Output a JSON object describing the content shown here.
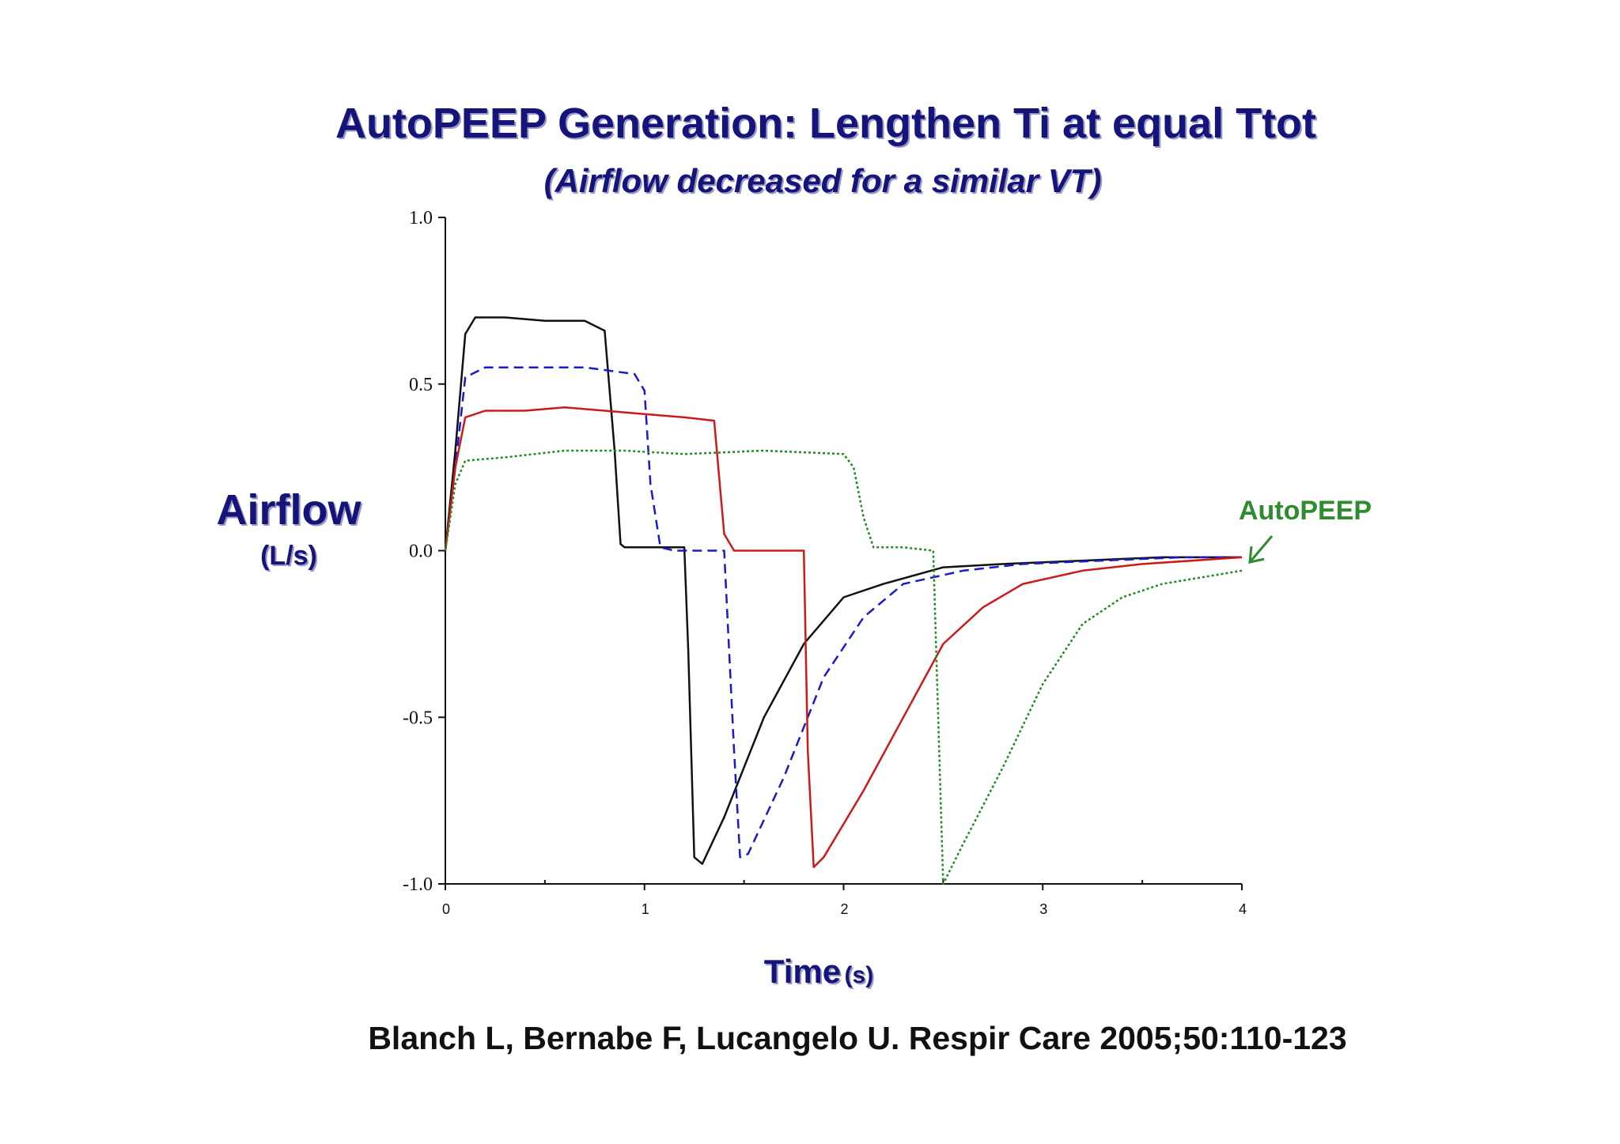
{
  "title": "AutoPEEP Generation: Lengthen Ti at equal Ttot",
  "subtitle": "(Airflow decreased for a similar VT)",
  "y_axis": {
    "label": "Airflow",
    "unit": "(L/s)"
  },
  "x_axis": {
    "label": "Time",
    "unit": "(s)"
  },
  "citation": "Blanch L, Bernabe F, Lucangelo U. Respir Care 2005;50:110-123",
  "annotation": {
    "text": "AutoPEEP",
    "color": "#2e8b2e"
  },
  "chart_data": {
    "type": "line",
    "title": "AutoPEEP Generation: Lengthen Ti at equal Ttot",
    "subtitle": "(Airflow decreased for a similar VT)",
    "xlabel": "Time (s)",
    "ylabel": "Airflow (L/s)",
    "xlim": [
      0,
      4
    ],
    "ylim": [
      -1.0,
      1.0
    ],
    "x_ticks": [
      "0",
      "1",
      "2",
      "3",
      "4"
    ],
    "y_ticks": [
      "1.0",
      "0.5",
      "0.0",
      "-0.5",
      "-1.0"
    ],
    "grid": false,
    "series": [
      {
        "color": "#111111",
        "dash": "solid",
        "points": [
          [
            0,
            0.0
          ],
          [
            0.05,
            0.3
          ],
          [
            0.1,
            0.65
          ],
          [
            0.15,
            0.7
          ],
          [
            0.3,
            0.7
          ],
          [
            0.5,
            0.69
          ],
          [
            0.7,
            0.69
          ],
          [
            0.8,
            0.66
          ],
          [
            0.85,
            0.3
          ],
          [
            0.88,
            0.02
          ],
          [
            0.9,
            0.01
          ],
          [
            1.0,
            0.01
          ],
          [
            1.1,
            0.01
          ],
          [
            1.2,
            0.01
          ],
          [
            1.22,
            -0.3
          ],
          [
            1.25,
            -0.92
          ],
          [
            1.29,
            -0.94
          ],
          [
            1.4,
            -0.8
          ],
          [
            1.6,
            -0.5
          ],
          [
            1.8,
            -0.28
          ],
          [
            2.0,
            -0.14
          ],
          [
            2.2,
            -0.1
          ],
          [
            2.5,
            -0.05
          ],
          [
            2.8,
            -0.04
          ],
          [
            3.2,
            -0.03
          ],
          [
            3.6,
            -0.02
          ],
          [
            4.0,
            -0.02
          ]
        ]
      },
      {
        "color": "#1a1acc",
        "dash": "dashed",
        "points": [
          [
            0,
            0.0
          ],
          [
            0.05,
            0.25
          ],
          [
            0.1,
            0.52
          ],
          [
            0.2,
            0.55
          ],
          [
            0.4,
            0.55
          ],
          [
            0.7,
            0.55
          ],
          [
            0.95,
            0.53
          ],
          [
            1.0,
            0.48
          ],
          [
            1.03,
            0.2
          ],
          [
            1.08,
            0.01
          ],
          [
            1.15,
            0.0
          ],
          [
            1.3,
            0.0
          ],
          [
            1.4,
            0.0
          ],
          [
            1.45,
            -0.6
          ],
          [
            1.48,
            -0.92
          ],
          [
            1.52,
            -0.91
          ],
          [
            1.7,
            -0.68
          ],
          [
            1.9,
            -0.38
          ],
          [
            2.1,
            -0.2
          ],
          [
            2.3,
            -0.1
          ],
          [
            2.6,
            -0.06
          ],
          [
            2.9,
            -0.04
          ],
          [
            3.3,
            -0.03
          ],
          [
            3.7,
            -0.02
          ],
          [
            4.0,
            -0.02
          ]
        ]
      },
      {
        "color": "#cc1a1a",
        "dash": "solid",
        "points": [
          [
            0,
            0.0
          ],
          [
            0.05,
            0.25
          ],
          [
            0.1,
            0.4
          ],
          [
            0.2,
            0.42
          ],
          [
            0.4,
            0.42
          ],
          [
            0.6,
            0.43
          ],
          [
            0.8,
            0.42
          ],
          [
            1.0,
            0.41
          ],
          [
            1.2,
            0.4
          ],
          [
            1.35,
            0.39
          ],
          [
            1.4,
            0.05
          ],
          [
            1.45,
            0.0
          ],
          [
            1.6,
            0.0
          ],
          [
            1.8,
            0.0
          ],
          [
            1.82,
            -0.6
          ],
          [
            1.85,
            -0.95
          ],
          [
            1.9,
            -0.92
          ],
          [
            2.1,
            -0.72
          ],
          [
            2.3,
            -0.5
          ],
          [
            2.5,
            -0.28
          ],
          [
            2.7,
            -0.17
          ],
          [
            2.9,
            -0.1
          ],
          [
            3.2,
            -0.06
          ],
          [
            3.5,
            -0.04
          ],
          [
            4.0,
            -0.02
          ]
        ]
      },
      {
        "color": "#1e8c1e",
        "dash": "dotted",
        "points": [
          [
            0,
            0.0
          ],
          [
            0.05,
            0.2
          ],
          [
            0.1,
            0.27
          ],
          [
            0.3,
            0.28
          ],
          [
            0.6,
            0.3
          ],
          [
            0.9,
            0.3
          ],
          [
            1.2,
            0.29
          ],
          [
            1.6,
            0.3
          ],
          [
            2.0,
            0.29
          ],
          [
            2.05,
            0.25
          ],
          [
            2.1,
            0.1
          ],
          [
            2.15,
            0.01
          ],
          [
            2.3,
            0.01
          ],
          [
            2.45,
            0.0
          ],
          [
            2.48,
            -0.6
          ],
          [
            2.5,
            -1.0
          ],
          [
            2.6,
            -0.88
          ],
          [
            2.8,
            -0.65
          ],
          [
            3.0,
            -0.4
          ],
          [
            3.2,
            -0.22
          ],
          [
            3.4,
            -0.14
          ],
          [
            3.6,
            -0.1
          ],
          [
            3.8,
            -0.08
          ],
          [
            4.0,
            -0.06
          ]
        ]
      }
    ]
  }
}
